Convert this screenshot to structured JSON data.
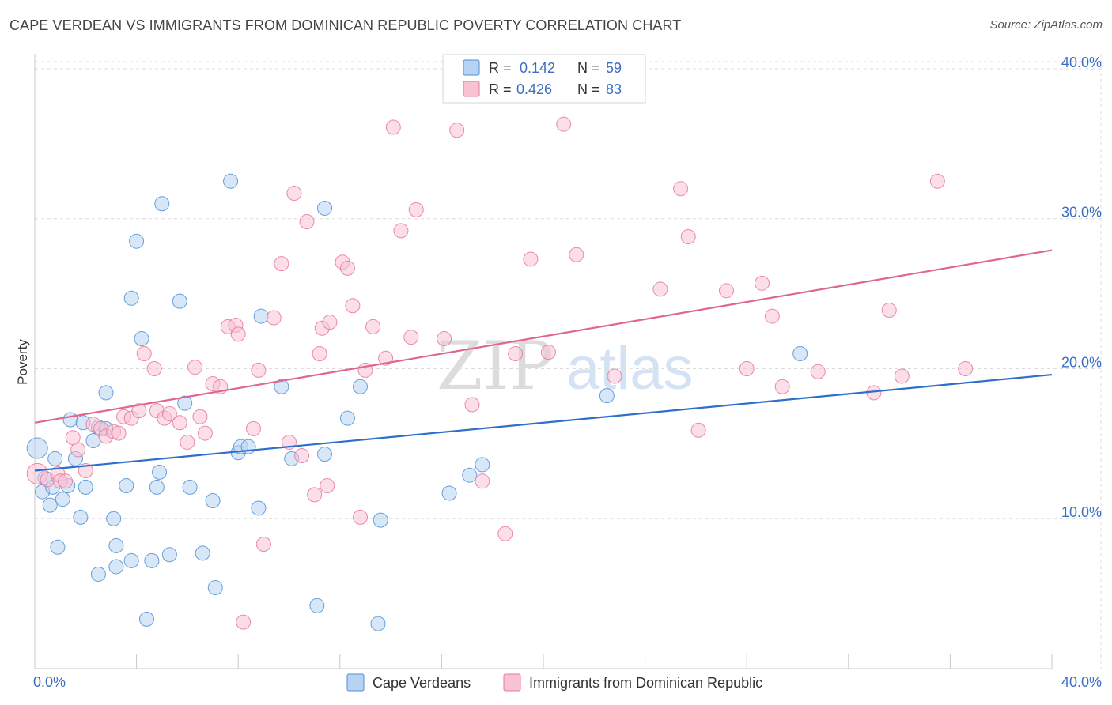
{
  "title": "CAPE VERDEAN VS IMMIGRANTS FROM DOMINICAN REPUBLIC POVERTY CORRELATION CHART",
  "source": "Source: ZipAtlas.com",
  "watermark": {
    "zip": "ZIP",
    "atlas": "atlas"
  },
  "colors": {
    "blue": "#4d8fd6",
    "blue_fill": "#b8d3f2",
    "blue_line": "#2f6fcc",
    "pink": "#e8779a",
    "pink_fill": "#f7c3d3",
    "pink_line": "#e0668f",
    "tick_text": "#3a6fc4",
    "grid": "#dcdcdc"
  },
  "legend": {
    "blue": {
      "r_label": "R =",
      "r_value": "0.142",
      "n_label": "N =",
      "n_value": "59"
    },
    "pink": {
      "r_label": "R =",
      "r_value": "0.426",
      "n_label": "N =",
      "n_value": "83"
    }
  },
  "bottom_legend": {
    "blue": "Cape Verdeans",
    "pink": "Immigrants from Dominican Republic"
  },
  "chart_data": {
    "type": "scatter",
    "title": "CAPE VERDEAN VS IMMIGRANTS FROM DOMINICAN REPUBLIC POVERTY CORRELATION CHART",
    "xlabel": "",
    "ylabel": "Poverty",
    "xlim": [
      0,
      40
    ],
    "ylim": [
      0,
      41
    ],
    "x_tick_labels": [
      "0.0%",
      "40.0%"
    ],
    "y_ticks": [
      10,
      20,
      30,
      40
    ],
    "y_tick_labels": [
      "10.0%",
      "20.0%",
      "30.0%",
      "40.0%"
    ],
    "series": [
      {
        "name": "Cape Verdeans",
        "color": "blue",
        "trend": {
          "x": [
            0,
            40
          ],
          "y": [
            13.2,
            19.6
          ]
        },
        "points": [
          [
            0.1,
            14.7
          ],
          [
            0.3,
            11.8
          ],
          [
            0.4,
            12.7
          ],
          [
            0.6,
            10.9
          ],
          [
            0.7,
            12.1
          ],
          [
            0.8,
            14.0
          ],
          [
            0.9,
            8.1
          ],
          [
            1.1,
            11.3
          ],
          [
            1.3,
            12.2
          ],
          [
            1.4,
            16.6
          ],
          [
            1.6,
            14.0
          ],
          [
            1.8,
            10.1
          ],
          [
            1.9,
            16.4
          ],
          [
            2.0,
            12.1
          ],
          [
            2.3,
            15.2
          ],
          [
            2.5,
            16.1
          ],
          [
            2.5,
            6.3
          ],
          [
            2.8,
            16.0
          ],
          [
            2.8,
            18.4
          ],
          [
            3.1,
            10.0
          ],
          [
            3.2,
            8.2
          ],
          [
            3.2,
            6.8
          ],
          [
            3.6,
            12.2
          ],
          [
            3.8,
            24.7
          ],
          [
            3.8,
            7.2
          ],
          [
            4.0,
            28.5
          ],
          [
            4.2,
            22.0
          ],
          [
            4.4,
            3.3
          ],
          [
            4.6,
            7.2
          ],
          [
            4.8,
            12.1
          ],
          [
            4.9,
            13.1
          ],
          [
            5.0,
            31.0
          ],
          [
            5.3,
            7.6
          ],
          [
            5.7,
            24.5
          ],
          [
            5.9,
            17.7
          ],
          [
            6.1,
            12.1
          ],
          [
            6.6,
            7.7
          ],
          [
            7.0,
            11.2
          ],
          [
            7.1,
            5.4
          ],
          [
            7.7,
            32.5
          ],
          [
            8.0,
            14.4
          ],
          [
            8.1,
            14.8
          ],
          [
            8.4,
            14.8
          ],
          [
            8.8,
            10.7
          ],
          [
            8.9,
            23.5
          ],
          [
            9.7,
            18.8
          ],
          [
            10.1,
            14.0
          ],
          [
            11.1,
            4.2
          ],
          [
            11.4,
            14.3
          ],
          [
            11.4,
            30.7
          ],
          [
            12.3,
            16.7
          ],
          [
            12.8,
            18.8
          ],
          [
            13.5,
            3.0
          ],
          [
            13.6,
            9.9
          ],
          [
            16.3,
            11.7
          ],
          [
            17.1,
            12.9
          ],
          [
            17.6,
            13.6
          ],
          [
            22.5,
            18.2
          ],
          [
            30.1,
            21.0
          ]
        ]
      },
      {
        "name": "Immigrants from Dominican Republic",
        "color": "pink",
        "trend": {
          "x": [
            0,
            40
          ],
          "y": [
            16.4,
            27.9
          ]
        },
        "points": [
          [
            0.1,
            13.0
          ],
          [
            0.5,
            12.6
          ],
          [
            0.9,
            13.0
          ],
          [
            1.0,
            12.5
          ],
          [
            1.2,
            12.5
          ],
          [
            1.5,
            15.4
          ],
          [
            1.7,
            14.6
          ],
          [
            2.0,
            13.2
          ],
          [
            2.3,
            16.3
          ],
          [
            2.6,
            16.0
          ],
          [
            2.8,
            15.5
          ],
          [
            3.1,
            15.8
          ],
          [
            3.3,
            15.7
          ],
          [
            3.5,
            16.8
          ],
          [
            3.8,
            16.7
          ],
          [
            4.1,
            17.2
          ],
          [
            4.3,
            21.0
          ],
          [
            4.7,
            20.0
          ],
          [
            4.8,
            17.2
          ],
          [
            5.1,
            16.7
          ],
          [
            5.3,
            17.0
          ],
          [
            5.7,
            16.4
          ],
          [
            6.0,
            15.1
          ],
          [
            6.3,
            20.1
          ],
          [
            6.5,
            16.8
          ],
          [
            6.7,
            15.7
          ],
          [
            7.0,
            19.0
          ],
          [
            7.3,
            18.8
          ],
          [
            7.6,
            22.8
          ],
          [
            7.9,
            22.9
          ],
          [
            8.0,
            22.3
          ],
          [
            8.2,
            3.1
          ],
          [
            8.6,
            16.0
          ],
          [
            8.8,
            19.9
          ],
          [
            9.0,
            8.3
          ],
          [
            9.4,
            23.4
          ],
          [
            9.7,
            27.0
          ],
          [
            10.0,
            15.1
          ],
          [
            10.2,
            31.7
          ],
          [
            10.5,
            14.2
          ],
          [
            10.7,
            29.8
          ],
          [
            11.0,
            11.6
          ],
          [
            11.2,
            21.0
          ],
          [
            11.3,
            22.7
          ],
          [
            11.6,
            23.1
          ],
          [
            12.1,
            27.1
          ],
          [
            12.3,
            26.7
          ],
          [
            12.5,
            24.2
          ],
          [
            12.8,
            10.1
          ],
          [
            13.0,
            19.9
          ],
          [
            13.3,
            22.8
          ],
          [
            13.8,
            20.7
          ],
          [
            14.1,
            36.1
          ],
          [
            14.4,
            29.2
          ],
          [
            14.8,
            22.1
          ],
          [
            15.0,
            30.6
          ],
          [
            16.1,
            22.0
          ],
          [
            16.6,
            35.9
          ],
          [
            17.2,
            17.6
          ],
          [
            17.6,
            12.5
          ],
          [
            18.5,
            9.0
          ],
          [
            18.9,
            21.0
          ],
          [
            19.5,
            27.3
          ],
          [
            20.2,
            21.1
          ],
          [
            20.8,
            36.3
          ],
          [
            21.3,
            27.6
          ],
          [
            22.8,
            19.5
          ],
          [
            24.6,
            25.3
          ],
          [
            25.4,
            32.0
          ],
          [
            25.7,
            28.8
          ],
          [
            26.1,
            15.9
          ],
          [
            27.2,
            25.2
          ],
          [
            28.0,
            20.0
          ],
          [
            28.6,
            25.7
          ],
          [
            29.0,
            23.5
          ],
          [
            29.4,
            18.8
          ],
          [
            30.8,
            19.8
          ],
          [
            33.0,
            18.4
          ],
          [
            33.6,
            23.9
          ],
          [
            34.1,
            19.5
          ],
          [
            35.5,
            32.5
          ],
          [
            36.6,
            20.0
          ],
          [
            11.5,
            12.2
          ]
        ]
      }
    ]
  }
}
